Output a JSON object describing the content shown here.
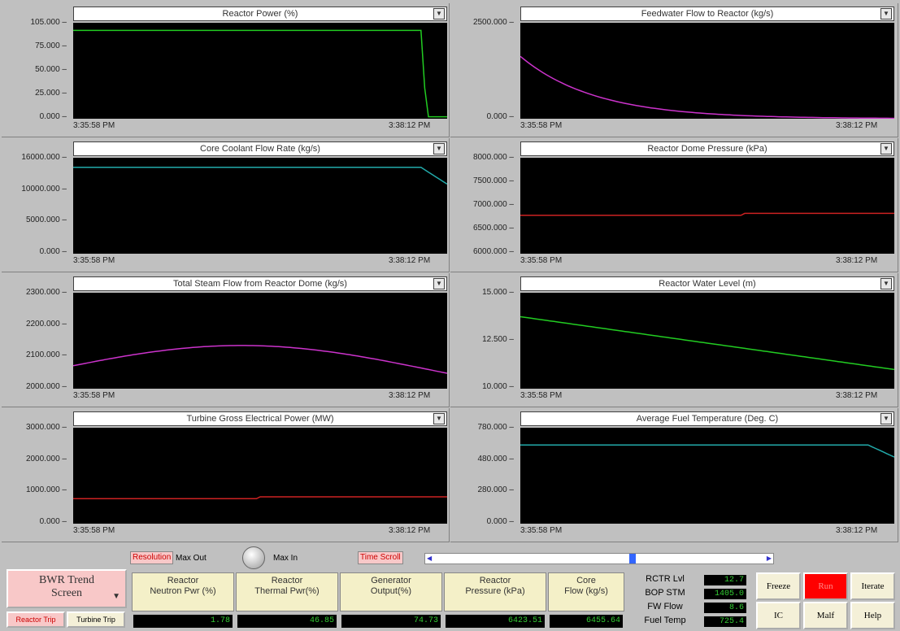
{
  "charts": [
    {
      "title": "Reactor Power (%)",
      "yticks": [
        "105.000",
        "75.000",
        "50.000",
        "25.000",
        "0.000"
      ],
      "xstart": "3:35:58 PM",
      "xend": "3:38:12 PM",
      "color": "#22cc22"
    },
    {
      "title": "Feedwater Flow to Reactor (kg/s)",
      "yticks": [
        "2500.000",
        "0.000"
      ],
      "xstart": "3:35:58 PM",
      "xend": "3:38:12 PM",
      "color": "#cc33cc"
    },
    {
      "title": "Core Coolant Flow Rate (kg/s)",
      "yticks": [
        "16000.000",
        "10000.000",
        "5000.000",
        "0.000"
      ],
      "xstart": "3:35:58 PM",
      "xend": "3:38:12 PM",
      "color": "#22aaaa"
    },
    {
      "title": "Reactor Dome Pressure (kPa)",
      "yticks": [
        "8000.000",
        "7500.000",
        "7000.000",
        "6500.000",
        "6000.000"
      ],
      "xstart": "3:35:58 PM",
      "xend": "3:38:12 PM",
      "color": "#cc2222"
    },
    {
      "title": "Total Steam Flow from Reactor Dome (kg/s)",
      "yticks": [
        "2300.000",
        "2200.000",
        "2100.000",
        "2000.000"
      ],
      "xstart": "3:35:58 PM",
      "xend": "3:38:12 PM",
      "color": "#cc33cc"
    },
    {
      "title": "Reactor Water Level (m)",
      "yticks": [
        "15.000",
        "12.500",
        "10.000"
      ],
      "xstart": "3:35:58 PM",
      "xend": "3:38:12 PM",
      "color": "#22cc22"
    },
    {
      "title": "Turbine Gross Electrical Power (MW)",
      "yticks": [
        "3000.000",
        "2000.000",
        "1000.000",
        "0.000"
      ],
      "xstart": "3:35:58 PM",
      "xend": "3:38:12 PM",
      "color": "#cc2222"
    },
    {
      "title": "Average Fuel Temperature (Deg. C)",
      "yticks": [
        "780.000",
        "480.000",
        "280.000",
        "0.000"
      ],
      "xstart": "3:35:58 PM",
      "xend": "3:38:12 PM",
      "color": "#22aaaa"
    }
  ],
  "controls": {
    "resolution": "Resolution",
    "max_out": "Max Out",
    "max_in": "Max In",
    "time_scroll": "Time Scroll",
    "time_scroll_level": 0.6
  },
  "screen_selector": {
    "line1": "BWR Trend",
    "line2": "Screen"
  },
  "trips": {
    "reactor": "Reactor Trip",
    "turbine": "Turbine Trip"
  },
  "readouts": [
    {
      "label1": "Reactor",
      "label2": "Neutron Pwr (%)",
      "value": "1.78"
    },
    {
      "label1": "Reactor",
      "label2": "Thermal Pwr(%)",
      "value": "46.85"
    },
    {
      "label1": "Generator",
      "label2": "Output(%)",
      "value": "74.73"
    },
    {
      "label1": "Reactor",
      "label2": "Pressure (kPa)",
      "value": "6423.51"
    },
    {
      "label1": "Core",
      "label2": "Flow (kg/s)",
      "value": "6455.64"
    }
  ],
  "side_readouts": [
    {
      "label": "RCTR Lvl",
      "value": "12.7"
    },
    {
      "label": "BOP STM",
      "value": "1405.0"
    },
    {
      "label": "FW Flow",
      "value": "8.6"
    },
    {
      "label": "Fuel Temp",
      "value": "725.4"
    }
  ],
  "buttons": {
    "freeze": "Freeze",
    "run": "Run",
    "iterate": "Iterate",
    "ic": "IC",
    "malf": "Malf",
    "help": "Help"
  }
}
